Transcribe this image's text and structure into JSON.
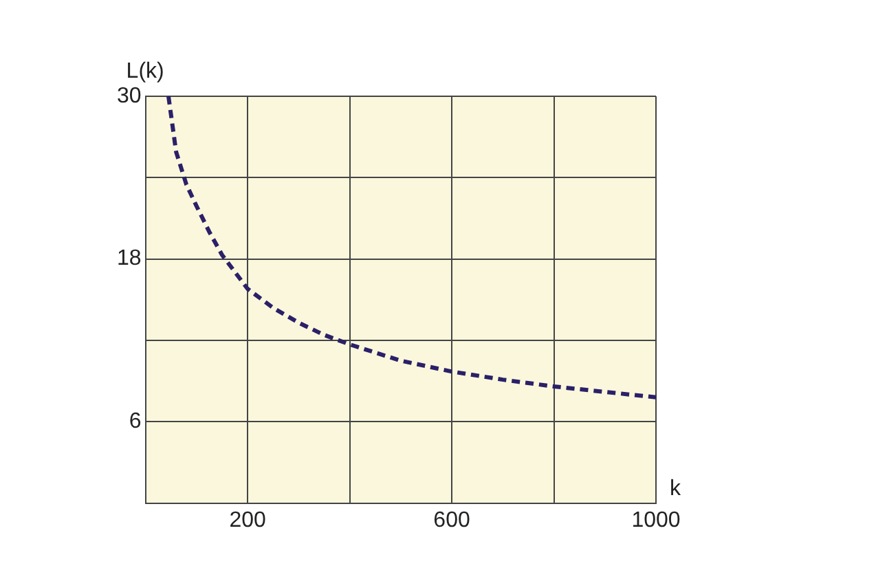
{
  "chart_data": {
    "type": "line",
    "xlabel": "k",
    "ylabel": "L(k)",
    "series": [
      {
        "color": "#2b2068",
        "x": [
          45,
          60,
          80,
          100,
          125,
          150,
          200,
          250,
          300,
          350,
          400,
          500,
          600,
          700,
          800,
          900,
          1000
        ],
        "values": [
          30,
          25.9,
          23.5,
          21.9,
          20,
          18.3,
          15.8,
          14.4,
          13.3,
          12.4,
          11.7,
          10.5,
          9.7,
          9.1,
          8.6,
          8.2,
          7.8
        ]
      }
    ],
    "xlim": [
      0,
      1000
    ],
    "xticks": [
      {
        "value": 0,
        "label": null
      },
      200,
      {
        "value": 400,
        "label": null
      },
      600,
      {
        "value": 800,
        "label": null
      },
      1000
    ],
    "ylim": [
      0,
      30
    ],
    "yticks": [
      {
        "value": 0,
        "label": null
      },
      6,
      {
        "value": 12,
        "label": null
      },
      18,
      {
        "value": 24,
        "label": null
      },
      30
    ],
    "grid": true,
    "marker": "none",
    "line_style": "dashed"
  }
}
